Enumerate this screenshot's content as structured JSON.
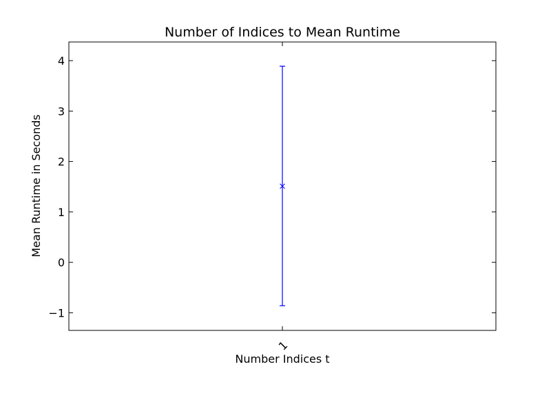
{
  "chart_data": {
    "type": "scatter",
    "title": "Number of Indices to Mean Runtime",
    "xlabel": "Number Indices t",
    "ylabel": "Mean Runtime in Seconds",
    "x_categories": [
      "1"
    ],
    "x_tick_rotation_deg": -45,
    "yticks": [
      -1,
      0,
      1,
      2,
      3,
      4
    ],
    "ytick_labels": [
      "−1",
      "0",
      "1",
      "2",
      "3",
      "4"
    ],
    "ylim": [
      -1.35,
      4.37
    ],
    "grid": false,
    "legend": "none",
    "series": [
      {
        "marker": "x",
        "color": "#0000ff",
        "points": [
          {
            "x": "1",
            "y": 1.51,
            "yerr_low": -0.86,
            "yerr_high": 3.89
          }
        ]
      }
    ]
  }
}
